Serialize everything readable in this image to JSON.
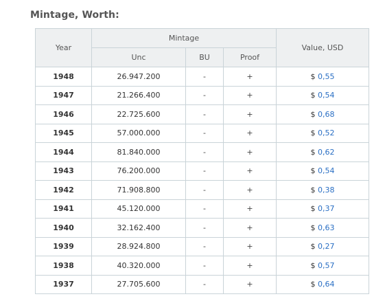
{
  "section_title": "Mintage, Worth:",
  "table": {
    "headers": {
      "year": "Year",
      "mintage_group": "Mintage",
      "unc": "Unc",
      "bu": "BU",
      "proof": "Proof",
      "value": "Value, USD"
    },
    "rows": [
      {
        "year": "1948",
        "unc": "26.947.200",
        "bu": "-",
        "proof": "+",
        "currency": "$",
        "value": "0,55"
      },
      {
        "year": "1947",
        "unc": "21.266.400",
        "bu": "-",
        "proof": "+",
        "currency": "$",
        "value": "0,54"
      },
      {
        "year": "1946",
        "unc": "22.725.600",
        "bu": "-",
        "proof": "+",
        "currency": "$",
        "value": "0,68"
      },
      {
        "year": "1945",
        "unc": "57.000.000",
        "bu": "-",
        "proof": "+",
        "currency": "$",
        "value": "0,52"
      },
      {
        "year": "1944",
        "unc": "81.840.000",
        "bu": "-",
        "proof": "+",
        "currency": "$",
        "value": "0,62"
      },
      {
        "year": "1943",
        "unc": "76.200.000",
        "bu": "-",
        "proof": "+",
        "currency": "$",
        "value": "0,54"
      },
      {
        "year": "1942",
        "unc": "71.908.800",
        "bu": "-",
        "proof": "+",
        "currency": "$",
        "value": "0,38"
      },
      {
        "year": "1941",
        "unc": "45.120.000",
        "bu": "-",
        "proof": "+",
        "currency": "$",
        "value": "0,37"
      },
      {
        "year": "1940",
        "unc": "32.162.400",
        "bu": "-",
        "proof": "+",
        "currency": "$",
        "value": "0,63"
      },
      {
        "year": "1939",
        "unc": "28.924.800",
        "bu": "-",
        "proof": "+",
        "currency": "$",
        "value": "0,27"
      },
      {
        "year": "1938",
        "unc": "40.320.000",
        "bu": "-",
        "proof": "+",
        "currency": "$",
        "value": "0,57"
      },
      {
        "year": "1937",
        "unc": "27.705.600",
        "bu": "-",
        "proof": "+",
        "currency": "$",
        "value": "0,64"
      }
    ]
  },
  "colors": {
    "link": "#2a6fc4",
    "header_bg": "#eef0f1",
    "border": "#c9d3d8"
  }
}
